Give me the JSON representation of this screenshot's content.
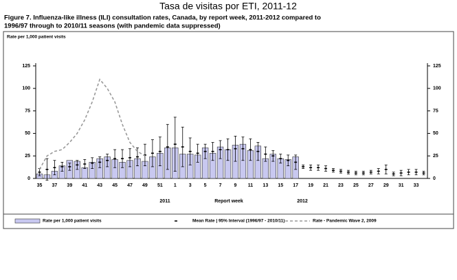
{
  "chart_data": {
    "type": "bar",
    "title": "Tasa de visitas por ETI, 2011-12",
    "subtitle": [
      "Figure 7. Influenza-like illness (ILI) consultation rates, Canada, by report week, 2011-2012 compared to",
      "1996/97 through to 2010/11 seasons (with pandemic data suppressed)"
    ],
    "y_label": "Rate per 1,000  patient visits",
    "x_label": "Report week",
    "annotations": [
      "2011",
      "2012"
    ],
    "categories": [
      "35",
      null,
      "37",
      null,
      "39",
      null,
      "41",
      null,
      "43",
      null,
      "45",
      null,
      "47",
      null,
      "49",
      null,
      "51",
      null,
      "1",
      null,
      "3",
      null,
      "5",
      null,
      "7",
      null,
      "9",
      null,
      "11",
      null,
      "13",
      null,
      "15",
      null,
      "17",
      null,
      "19",
      null,
      "21",
      null,
      "23",
      null,
      "25",
      null,
      "27",
      null,
      "29",
      null,
      "31",
      null,
      "33",
      null
    ],
    "ylim": [
      0,
      125
    ],
    "yticks": [
      0,
      25,
      50,
      75,
      100,
      125
    ],
    "series": [
      {
        "name": "Rate per 1,000 patient visits",
        "style": "bar",
        "color": "#c8c8f0",
        "values": [
          5,
          4,
          8,
          14,
          20,
          19,
          12,
          18,
          22,
          24,
          21,
          18,
          20,
          22,
          19,
          24,
          28,
          34,
          34,
          27,
          27,
          26,
          34,
          28,
          35,
          32,
          37,
          38,
          31,
          36,
          22,
          27,
          22,
          21,
          24,
          null,
          null,
          null,
          null,
          null,
          null,
          null,
          null,
          null,
          null,
          null,
          null,
          null,
          null,
          null,
          null,
          null
        ]
      },
      {
        "name": "Mean Rate | 95% Interval (1996/97 - 2010/11)",
        "style": "errorbar",
        "color": "#000000",
        "values": [
          7,
          10,
          12,
          13,
          13,
          15,
          16,
          17,
          18,
          20,
          22,
          22,
          23,
          24,
          26,
          28,
          30,
          35,
          38,
          35,
          30,
          28,
          30,
          30,
          32,
          32,
          33,
          33,
          32,
          30,
          27,
          25,
          22,
          20,
          18,
          13,
          12,
          12,
          11,
          9,
          8,
          7,
          6,
          6,
          7,
          8,
          10,
          5,
          6,
          7,
          7,
          6
        ],
        "errors": [
          4,
          12,
          8,
          5,
          4,
          5,
          5,
          6,
          6,
          7,
          10,
          10,
          10,
          10,
          12,
          15,
          16,
          25,
          30,
          22,
          15,
          10,
          8,
          10,
          10,
          12,
          14,
          13,
          12,
          10,
          8,
          6,
          5,
          6,
          8,
          2,
          3,
          3,
          3,
          2,
          2,
          2,
          2,
          2,
          2,
          3,
          5,
          2,
          3,
          3,
          3,
          2
        ]
      },
      {
        "name": "Rate - Pandemic Wave 2, 2009",
        "style": "dashed",
        "color": "#999999",
        "values": [
          10,
          25,
          30,
          32,
          40,
          50,
          65,
          85,
          110,
          100,
          85,
          60,
          40,
          30,
          25,
          null,
          null,
          null,
          null,
          null,
          null,
          null,
          null,
          null,
          null,
          null,
          null,
          null,
          null,
          null,
          null,
          null,
          null,
          null,
          null,
          null,
          null,
          null,
          null,
          null,
          null,
          null,
          null,
          null,
          null,
          null,
          null,
          null,
          null,
          null,
          null,
          null
        ]
      }
    ]
  }
}
